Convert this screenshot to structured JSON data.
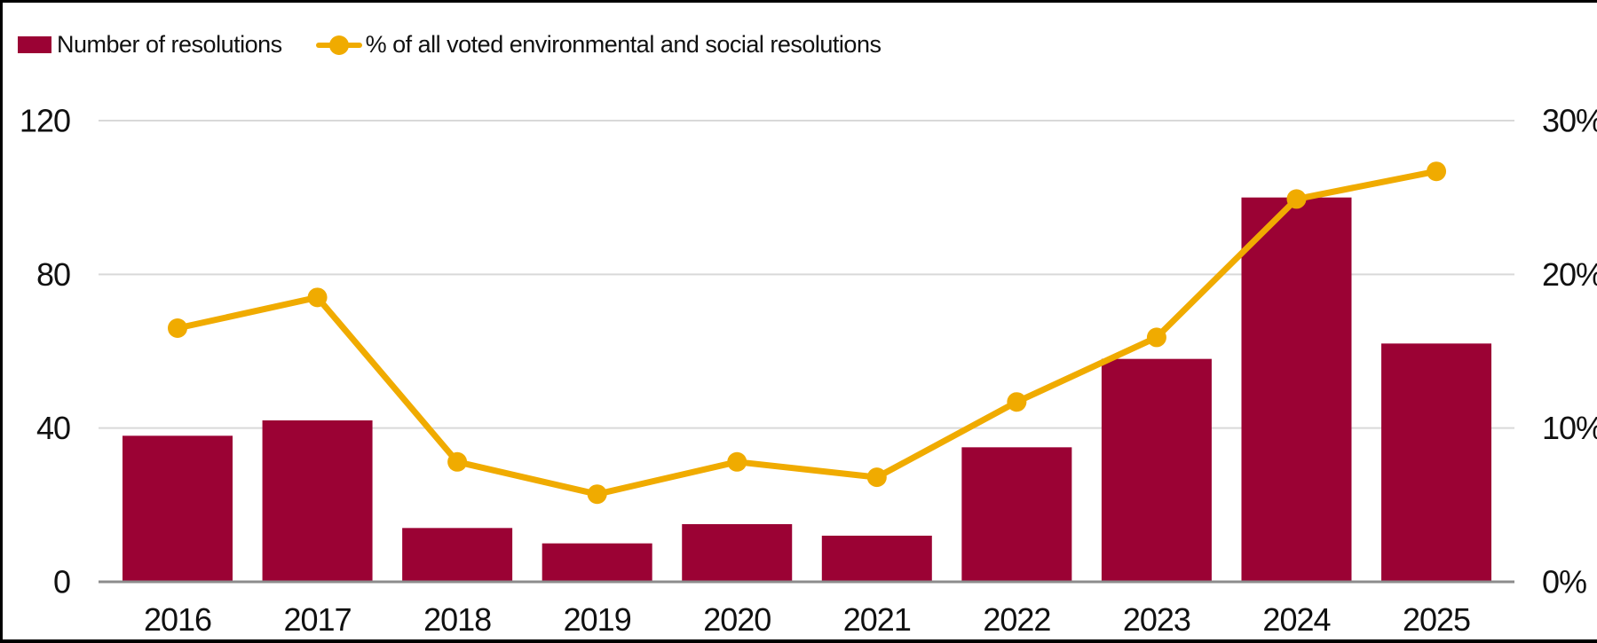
{
  "legend": {
    "bar_label": "Number of resolutions",
    "line_label": "% of all voted environmental and social resolutions"
  },
  "colors": {
    "bar": "#9B0234",
    "line": "#F0AB00",
    "gridline": "#D9D9D9",
    "axis_line": "#8C8C8C",
    "text": "#111111",
    "frame_border": "#000000",
    "background": "#FFFFFF"
  },
  "chart_data": {
    "type": "bar",
    "subtype": "bar-and-line-combo",
    "categories": [
      "2016",
      "2017",
      "2018",
      "2019",
      "2020",
      "2021",
      "2022",
      "2023",
      "2024",
      "2025"
    ],
    "series": [
      {
        "name": "Number of resolutions",
        "type": "bar",
        "axis": "left",
        "values": [
          38,
          42,
          14,
          10,
          15,
          12,
          35,
          58,
          100,
          62
        ]
      },
      {
        "name": "% of all voted environmental and social resolutions",
        "type": "line",
        "axis": "right",
        "values": [
          16.5,
          18.5,
          7.8,
          5.7,
          7.8,
          6.8,
          11.7,
          15.9,
          24.9,
          26.7
        ]
      }
    ],
    "left_axis": {
      "min": 0,
      "max": 120,
      "ticks": [
        {
          "label": "0",
          "value": 0
        },
        {
          "label": "40",
          "value": 40
        },
        {
          "label": "80",
          "value": 80
        },
        {
          "label": "120",
          "value": 120
        }
      ]
    },
    "right_axis": {
      "min": 0,
      "max": 30,
      "ticks": [
        {
          "label": "0%",
          "value": 0
        },
        {
          "label": "10%",
          "value": 10
        },
        {
          "label": "20%",
          "value": 20
        },
        {
          "label": "30%",
          "value": 30
        }
      ]
    },
    "grid": true,
    "legend_position": "top-left",
    "title": "",
    "xlabel": "",
    "ylabel": ""
  }
}
